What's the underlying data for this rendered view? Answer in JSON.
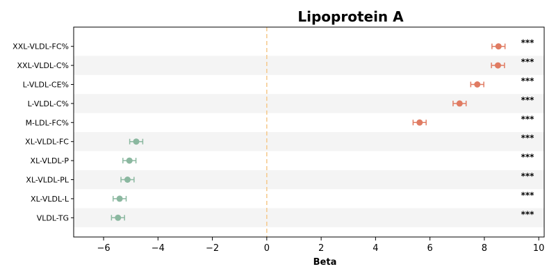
{
  "chart_data": {
    "type": "scatter",
    "subtype": "forest-plot",
    "title": "Lipoprotein A",
    "xlabel": "Beta",
    "ylabel": "",
    "xlim": [
      -7.1,
      10.2
    ],
    "xticks": [
      -6,
      -4,
      -2,
      0,
      2,
      4,
      6,
      8,
      10
    ],
    "xtick_labels": [
      "−6",
      "−4",
      "−2",
      "0",
      "2",
      "4",
      "6",
      "8",
      "10"
    ],
    "reference_line": 0,
    "reference_line_color": "#f5c88a",
    "positive_color": "#e07b62",
    "negative_color": "#8bb8a0",
    "band_color": "#f4f4f4",
    "grid": false,
    "categories": [
      "XXL-VLDL-FC%",
      "XXL-VLDL-C%",
      "L-VLDL-CE%",
      "L-VLDL-C%",
      "M-LDL-FC%",
      "XL-VLDL-FC",
      "XL-VLDL-P",
      "XL-VLDL-PL",
      "XL-VLDL-L",
      "VLDL-TG"
    ],
    "points": [
      {
        "label": "XXL-VLDL-FC%",
        "beta": 8.52,
        "ci_low": 8.28,
        "ci_high": 8.76,
        "significance": "***"
      },
      {
        "label": "XXL-VLDL-C%",
        "beta": 8.5,
        "ci_low": 8.26,
        "ci_high": 8.74,
        "significance": "***"
      },
      {
        "label": "L-VLDL-CE%",
        "beta": 7.74,
        "ci_low": 7.5,
        "ci_high": 7.98,
        "significance": "***"
      },
      {
        "label": "L-VLDL-C%",
        "beta": 7.09,
        "ci_low": 6.85,
        "ci_high": 7.33,
        "significance": "***"
      },
      {
        "label": "M-LDL-FC%",
        "beta": 5.62,
        "ci_low": 5.38,
        "ci_high": 5.86,
        "significance": "***"
      },
      {
        "label": "XL-VLDL-FC",
        "beta": -4.8,
        "ci_low": -5.04,
        "ci_high": -4.56,
        "significance": "***"
      },
      {
        "label": "XL-VLDL-P",
        "beta": -5.05,
        "ci_low": -5.29,
        "ci_high": -4.81,
        "significance": "***"
      },
      {
        "label": "XL-VLDL-PL",
        "beta": -5.12,
        "ci_low": -5.36,
        "ci_high": -4.88,
        "significance": "***"
      },
      {
        "label": "XL-VLDL-L",
        "beta": -5.41,
        "ci_low": -5.65,
        "ci_high": -5.17,
        "significance": "***"
      },
      {
        "label": "VLDL-TG",
        "beta": -5.47,
        "ci_low": -5.71,
        "ci_high": -5.23,
        "significance": "***"
      }
    ]
  }
}
